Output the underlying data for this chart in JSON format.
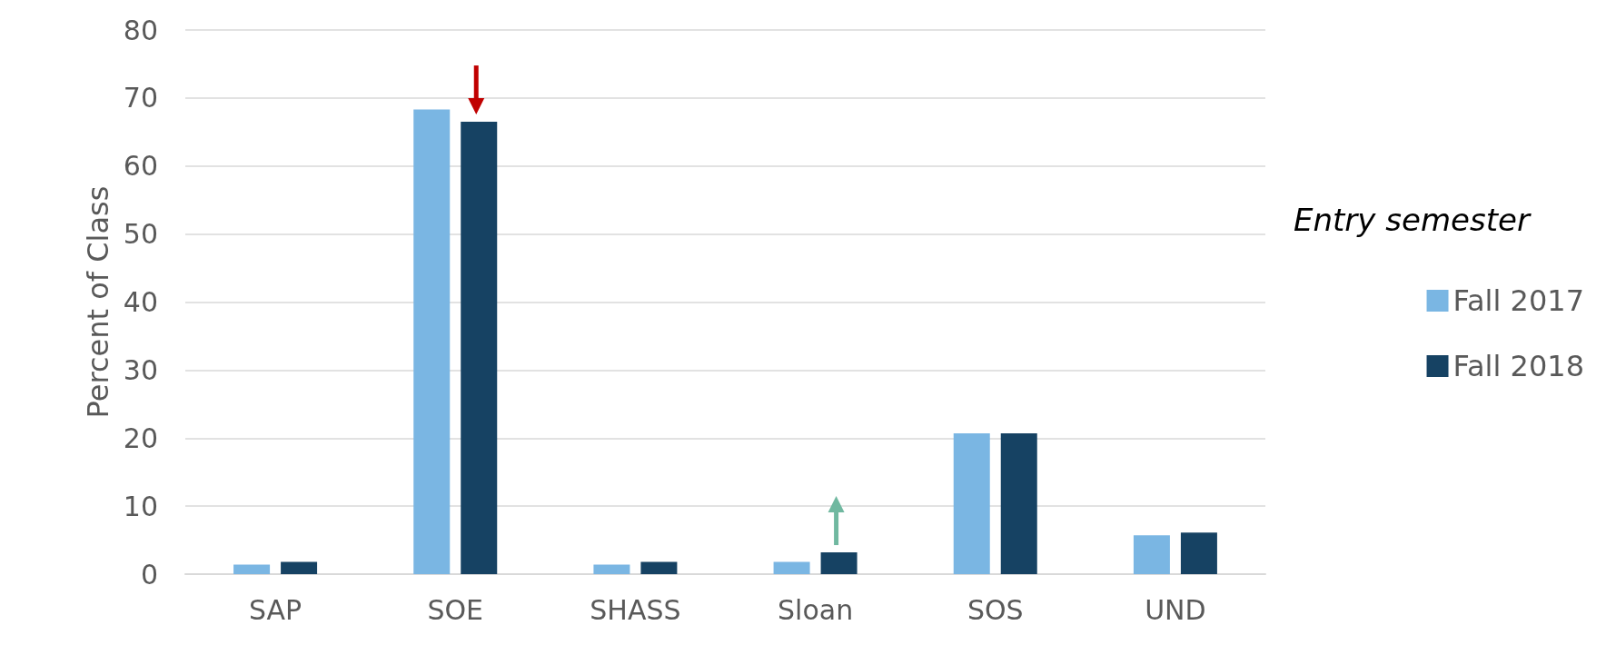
{
  "chart_data": {
    "type": "bar",
    "ylabel": "Percent of Class",
    "legend_title": "Entry semester",
    "categories": [
      "SAP",
      "SOE",
      "SHASS",
      "Sloan",
      "SOS",
      "UND"
    ],
    "series": [
      {
        "name": "Fall 2017",
        "color": "#7ab6e3",
        "values": [
          1.4,
          68.3,
          1.4,
          1.8,
          20.7,
          5.7
        ]
      },
      {
        "name": "Fall 2018",
        "color": "#164263",
        "values": [
          1.8,
          66.5,
          1.8,
          3.2,
          20.7,
          6.1
        ]
      }
    ],
    "ylim": [
      0,
      80
    ],
    "yticks": [
      0,
      10,
      20,
      30,
      40,
      50,
      60,
      70,
      80
    ],
    "grid": "y",
    "legend": "right"
  }
}
